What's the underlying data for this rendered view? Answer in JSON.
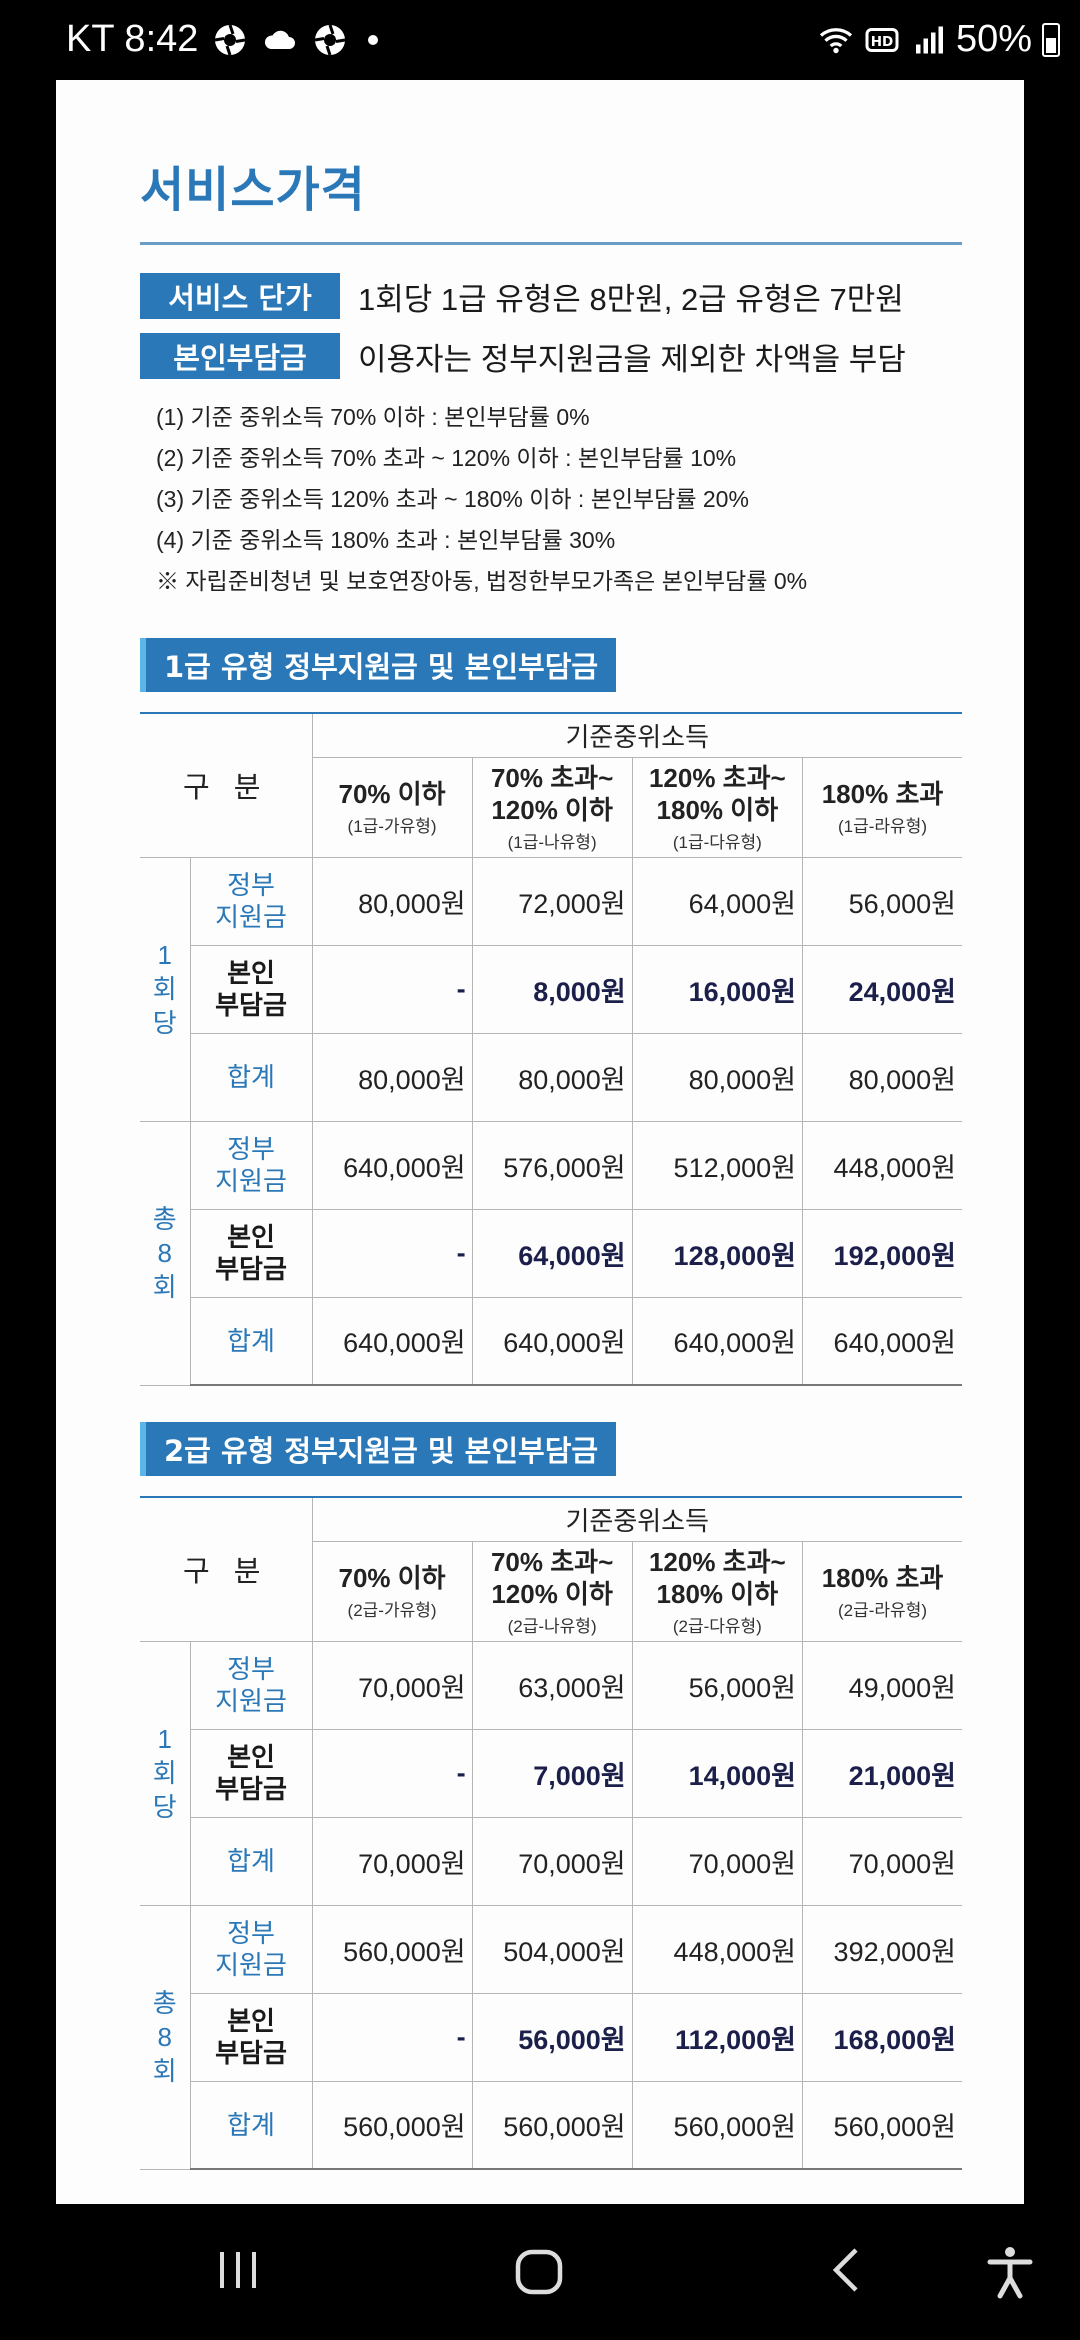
{
  "status_bar": {
    "carrier_time": "KT 8:42",
    "battery": "50%"
  },
  "doc": {
    "title": "서비스가격",
    "service_price_tag": "서비스 단가",
    "service_price_text": "1회당 1급 유형은 8만원, 2급 유형은 7만원",
    "self_pay_tag": "본인부담금",
    "self_pay_text": "이용자는 정부지원금을 제외한 차액을 부담",
    "notes": [
      "(1) 기준 중위소득 70% 이하 : 본인부담률 0%",
      "(2) 기준 중위소득 70% 초과 ~ 120% 이하 : 본인부담률 10%",
      "(3) 기준 중위소득 120% 초과 ~ 180% 이하 : 본인부담률 20%",
      "(4) 기준 중위소득 180% 초과 : 본인부담률 30%",
      "※ 자립준비청년 및 보호연장아동, 법정한부모가족은 본인부담률 0%"
    ],
    "table1": {
      "section_title": "1급 유형 정부지원금 및 본인부담금",
      "income_header": "기준중위소득",
      "gubun": "구 분",
      "cols": [
        {
          "main": "70% 이하",
          "main2": "",
          "sub": "(1급-가유형)"
        },
        {
          "main": "70% 초과~",
          "main2": "120% 이하",
          "sub": "(1급-나유형)"
        },
        {
          "main": "120% 초과~",
          "main2": "180% 이하",
          "sub": "(1급-다유형)"
        },
        {
          "main": "180% 초과",
          "main2": "",
          "sub": "(1급-라유형)"
        }
      ],
      "per_session_label": [
        "1",
        "회",
        "당"
      ],
      "total_label": [
        "총",
        "8",
        "회"
      ],
      "row_gov": [
        "정부",
        "지원금"
      ],
      "row_self": [
        "본인",
        "부담금"
      ],
      "row_sum": "합계",
      "per_session": {
        "gov": [
          "80,000원",
          "72,000원",
          "64,000원",
          "56,000원"
        ],
        "self": [
          "-",
          "8,000원",
          "16,000원",
          "24,000원"
        ],
        "sum": [
          "80,000원",
          "80,000원",
          "80,000원",
          "80,000원"
        ]
      },
      "total": {
        "gov": [
          "640,000원",
          "576,000원",
          "512,000원",
          "448,000원"
        ],
        "self": [
          "-",
          "64,000원",
          "128,000원",
          "192,000원"
        ],
        "sum": [
          "640,000원",
          "640,000원",
          "640,000원",
          "640,000원"
        ]
      }
    },
    "table2": {
      "section_title": "2급 유형 정부지원금 및 본인부담금",
      "income_header": "기준중위소득",
      "gubun": "구 분",
      "cols": [
        {
          "main": "70% 이하",
          "main2": "",
          "sub": "(2급-가유형)"
        },
        {
          "main": "70% 초과~",
          "main2": "120% 이하",
          "sub": "(2급-나유형)"
        },
        {
          "main": "120% 초과~",
          "main2": "180% 이하",
          "sub": "(2급-다유형)"
        },
        {
          "main": "180% 초과",
          "main2": "",
          "sub": "(2급-라유형)"
        }
      ],
      "per_session_label": [
        "1",
        "회",
        "당"
      ],
      "total_label": [
        "총",
        "8",
        "회"
      ],
      "row_gov": [
        "정부",
        "지원금"
      ],
      "row_self": [
        "본인",
        "부담금"
      ],
      "row_sum": "합계",
      "per_session": {
        "gov": [
          "70,000원",
          "63,000원",
          "56,000원",
          "49,000원"
        ],
        "self": [
          "-",
          "7,000원",
          "14,000원",
          "21,000원"
        ],
        "sum": [
          "70,000원",
          "70,000원",
          "70,000원",
          "70,000원"
        ]
      },
      "total": {
        "gov": [
          "560,000원",
          "504,000원",
          "448,000원",
          "392,000원"
        ],
        "self": [
          "-",
          "56,000원",
          "112,000원",
          "168,000원"
        ],
        "sum": [
          "560,000원",
          "560,000원",
          "560,000원",
          "560,000원"
        ]
      }
    }
  },
  "nav_bar": {
    "recent_icon": "recent-apps-icon",
    "home_icon": "home-icon",
    "back_icon": "back-icon",
    "accessibility_icon": "accessibility-icon"
  }
}
